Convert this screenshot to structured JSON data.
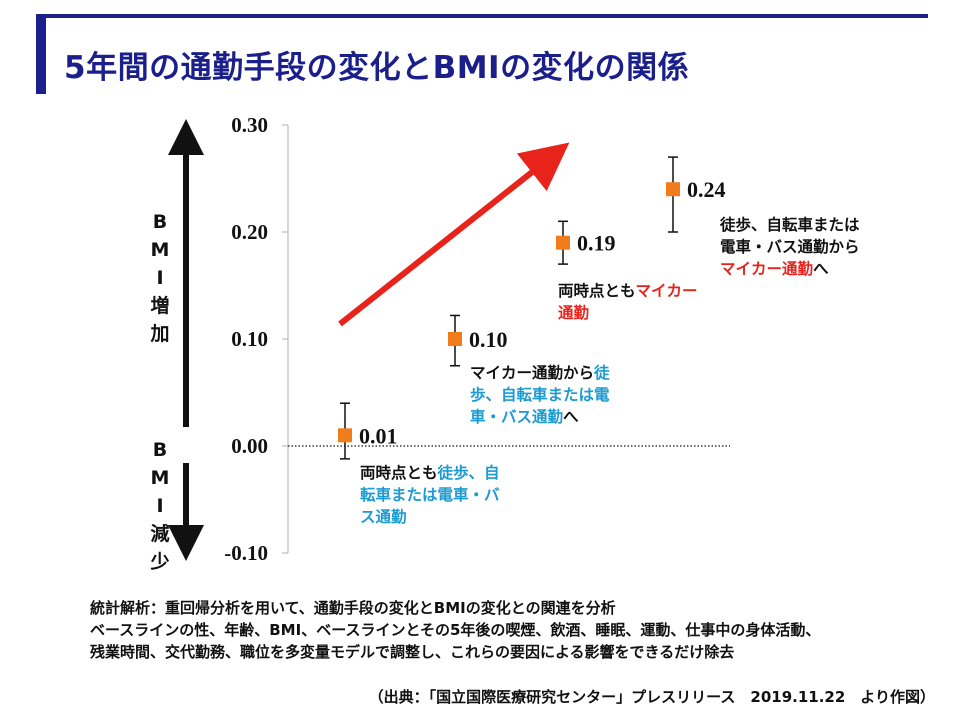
{
  "page": {
    "title": "5年間の通勤手段の変化とBMIの変化の関係"
  },
  "chart_data": {
    "type": "scatter",
    "ylim": [
      -0.1,
      0.3
    ],
    "yticks": [
      "0.30",
      "0.20",
      "0.10",
      "0.00",
      "-0.10"
    ],
    "ytick_values": [
      0.3,
      0.2,
      0.1,
      0.0,
      -0.1
    ],
    "grid": false,
    "baseline": 0.0,
    "marker_color": "#f07c1c",
    "arrow_color": "#e8231c",
    "up_label": [
      "B",
      "M",
      "I",
      "増",
      "加"
    ],
    "down_label": [
      "B",
      "M",
      "I",
      "減",
      "少"
    ],
    "points": [
      {
        "value": 0.01,
        "label": "0.01",
        "err_low": -0.012,
        "err_high": 0.04,
        "desc": [
          [
            {
              "text": "両時点とも",
              "color": "black"
            },
            {
              "text": "徒歩、自",
              "color": "blue"
            }
          ],
          [
            {
              "text": "転車または電車・バ",
              "color": "blue"
            }
          ],
          [
            {
              "text": "ス通勤",
              "color": "blue"
            }
          ]
        ]
      },
      {
        "value": 0.1,
        "label": "0.10",
        "err_low": 0.075,
        "err_high": 0.122,
        "desc": [
          [
            {
              "text": "マイカー通勤から",
              "color": "black"
            },
            {
              "text": "徒",
              "color": "blue"
            }
          ],
          [
            {
              "text": "歩、自転車または電",
              "color": "blue"
            }
          ],
          [
            {
              "text": "車・バス通勤",
              "color": "blue"
            },
            {
              "text": "へ",
              "color": "black"
            }
          ]
        ]
      },
      {
        "value": 0.19,
        "label": "0.19",
        "err_low": 0.17,
        "err_high": 0.21,
        "desc": [
          [
            {
              "text": "両時点とも",
              "color": "black"
            },
            {
              "text": "マイカー",
              "color": "red"
            }
          ],
          [
            {
              "text": "通勤",
              "color": "red"
            }
          ]
        ]
      },
      {
        "value": 0.24,
        "label": "0.24",
        "err_low": 0.2,
        "err_high": 0.27,
        "desc": [
          [
            {
              "text": "徒歩、自転車または",
              "color": "black"
            }
          ],
          [
            {
              "text": "電車・バス通勤から",
              "color": "black"
            }
          ],
          [
            {
              "text": "マイカー通勤",
              "color": "red"
            },
            {
              "text": "へ",
              "color": "black"
            }
          ]
        ]
      }
    ]
  },
  "notes": {
    "line1": "統計解析：重回帰分析を用いて、通勤手段の変化とBMIの変化との関連を分析",
    "line2": "ベースラインの性、年齢、BMI、ベースラインとその5年後の喫煙、飲酒、睡眠、運動、仕事中の身体活動、",
    "line3": "残業時間、交代勤務、職位を多変量モデルで調整し、これらの要因による影響をできるだけ除去"
  },
  "source": "（出典：「国立国際医療研究センター」プレスリリース　2019.11.22　より作図）"
}
